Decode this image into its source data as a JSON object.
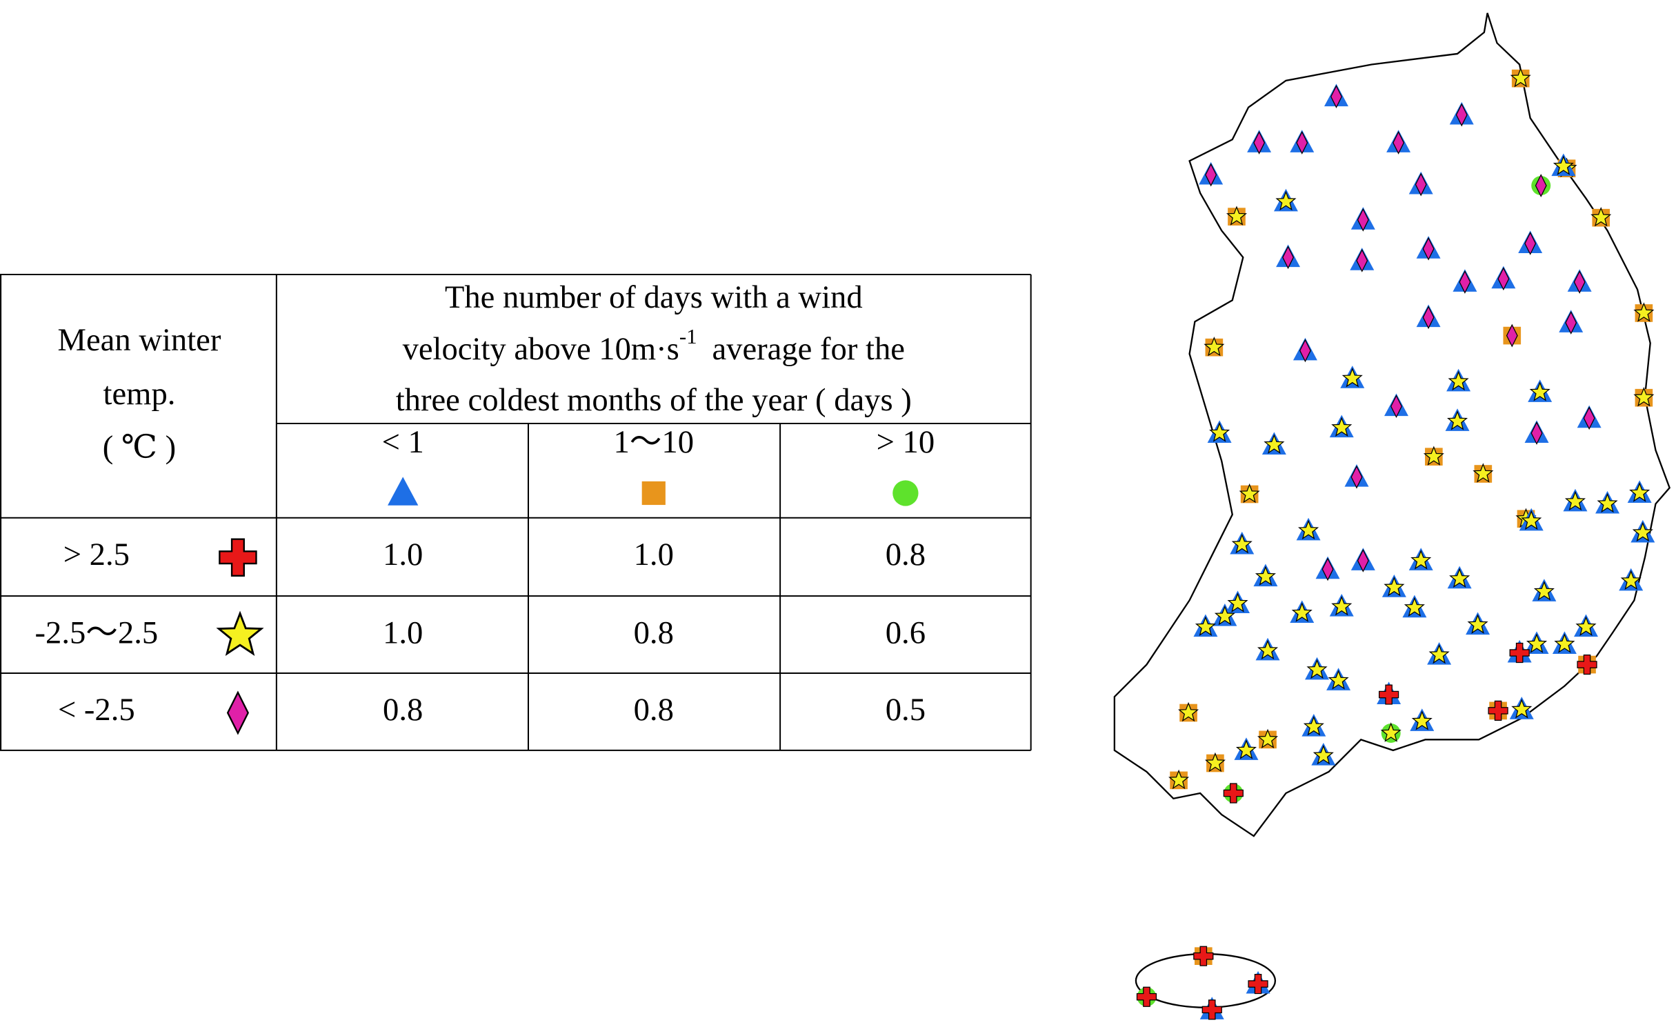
{
  "table": {
    "corner": [
      "Mean winter",
      "temp.",
      "( ℃ )"
    ],
    "header": {
      "line1": "The number of days with a wind",
      "line2": "velocity above 10m·s",
      "superscript": "-1",
      "line2_end": "average  for the",
      "line3": "three coldest months of the year ( days )"
    },
    "columns": [
      "< 1",
      "1～10",
      "> 10"
    ],
    "rows": [
      [
        "> 2.5",
        "1.0",
        "1.0",
        "0.8"
      ],
      [
        "-2.5～2.5",
        "1.0",
        "0.8",
        "0.6"
      ],
      [
        "< -2.5",
        "0.8",
        "0.8",
        "0.5"
      ]
    ]
  }
}
